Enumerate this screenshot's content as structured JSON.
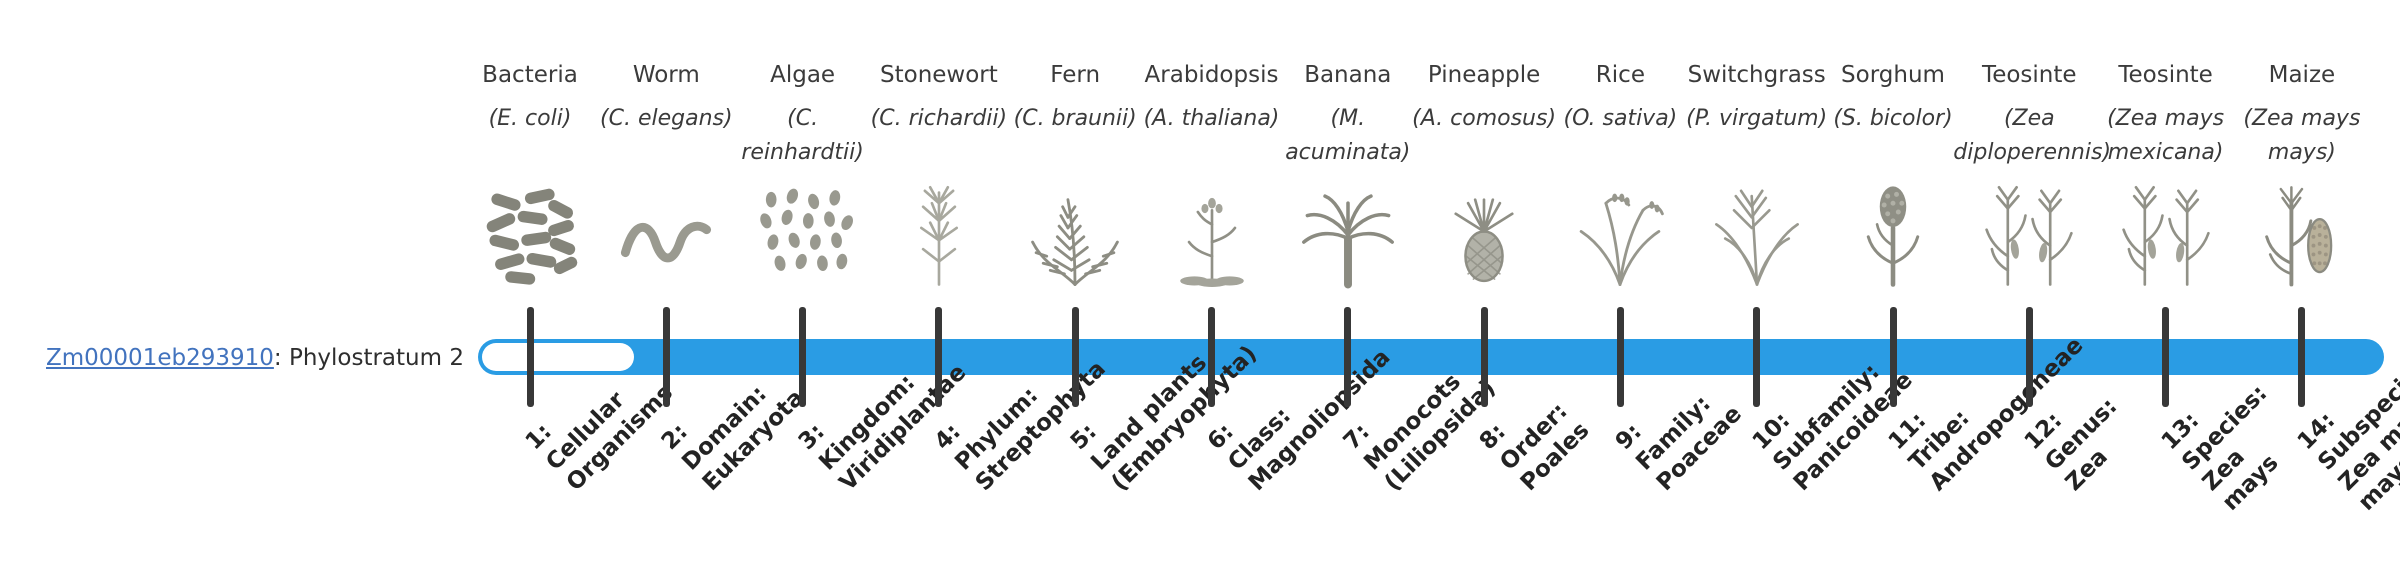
{
  "colors": {
    "bar": "#2a9ce4",
    "tick": "#383838",
    "link": "#4273be",
    "text": "#3b3b3b",
    "background": "#ffffff"
  },
  "gene": {
    "id": "Zm00001eb293910",
    "suffix": ": Phylostratum 2",
    "phylostratum": 2
  },
  "timeline": {
    "unfilled_segment": "phylostratum-1-unfilled",
    "tick_count": 14
  },
  "organisms": [
    {
      "common": "Bacteria",
      "scientific": "(E. coli)",
      "icon": "bacteria-icon",
      "stratum_lines": [
        "1:",
        "Cellular",
        "Organisms"
      ]
    },
    {
      "common": "Worm",
      "scientific": "(C. elegans)",
      "icon": "worm-icon",
      "stratum_lines": [
        "2:",
        "Domain:",
        "Eukaryota"
      ]
    },
    {
      "common": "Algae",
      "scientific": "(C. reinhardtii)",
      "icon": "algae-icon",
      "stratum_lines": [
        "3:",
        "Kingdom:",
        "Viridiplantae"
      ]
    },
    {
      "common": "Stonewort",
      "scientific": "(C. richardii)",
      "icon": "stonewort-icon",
      "stratum_lines": [
        "4:",
        "Phylum:",
        "Streptophyta"
      ]
    },
    {
      "common": "Fern",
      "scientific": "(C. braunii)",
      "icon": "fern-icon",
      "stratum_lines": [
        "5:",
        "Land plants",
        "(Embryophyta)"
      ]
    },
    {
      "common": "Arabidopsis",
      "scientific": "(A. thaliana)",
      "icon": "arabidopsis-icon",
      "stratum_lines": [
        "6:",
        "Class:",
        "Magnoliopsida"
      ]
    },
    {
      "common": "Banana",
      "scientific": "(M. acuminata)",
      "icon": "banana-icon",
      "stratum_lines": [
        "7:",
        "Monocots",
        "(Liliopsida)"
      ]
    },
    {
      "common": "Pineapple",
      "scientific": "(A. comosus)",
      "icon": "pineapple-icon",
      "stratum_lines": [
        "8:",
        "Order:",
        "Poales"
      ]
    },
    {
      "common": "Rice",
      "scientific": "(O. sativa)",
      "icon": "rice-icon",
      "stratum_lines": [
        "9:",
        "Family:",
        "Poaceae"
      ]
    },
    {
      "common": "Switchgrass",
      "scientific": "(P. virgatum)",
      "icon": "switchgrass-icon",
      "stratum_lines": [
        "10:",
        "Subfamily:",
        "Panicoideae"
      ]
    },
    {
      "common": "Sorghum",
      "scientific": "(S. bicolor)",
      "icon": "sorghum-icon",
      "stratum_lines": [
        "11:",
        "Tribe:",
        "Andropogoneae"
      ]
    },
    {
      "common": "Teosinte",
      "scientific": "(Zea diploperennis)",
      "icon": "teosinte-icon",
      "stratum_lines": [
        "12:",
        "Genus:",
        "Zea"
      ]
    },
    {
      "common": "Teosinte",
      "scientific": "(Zea mays mexicana)",
      "icon": "teosinte-icon",
      "stratum_lines": [
        "13:",
        "Species:",
        "Zea",
        "mays"
      ]
    },
    {
      "common": "Maize",
      "scientific": "(Zea mays mays)",
      "icon": "maize-icon",
      "stratum_lines": [
        "14:",
        "Subspecies:",
        "Zea mays",
        "mays"
      ]
    }
  ]
}
